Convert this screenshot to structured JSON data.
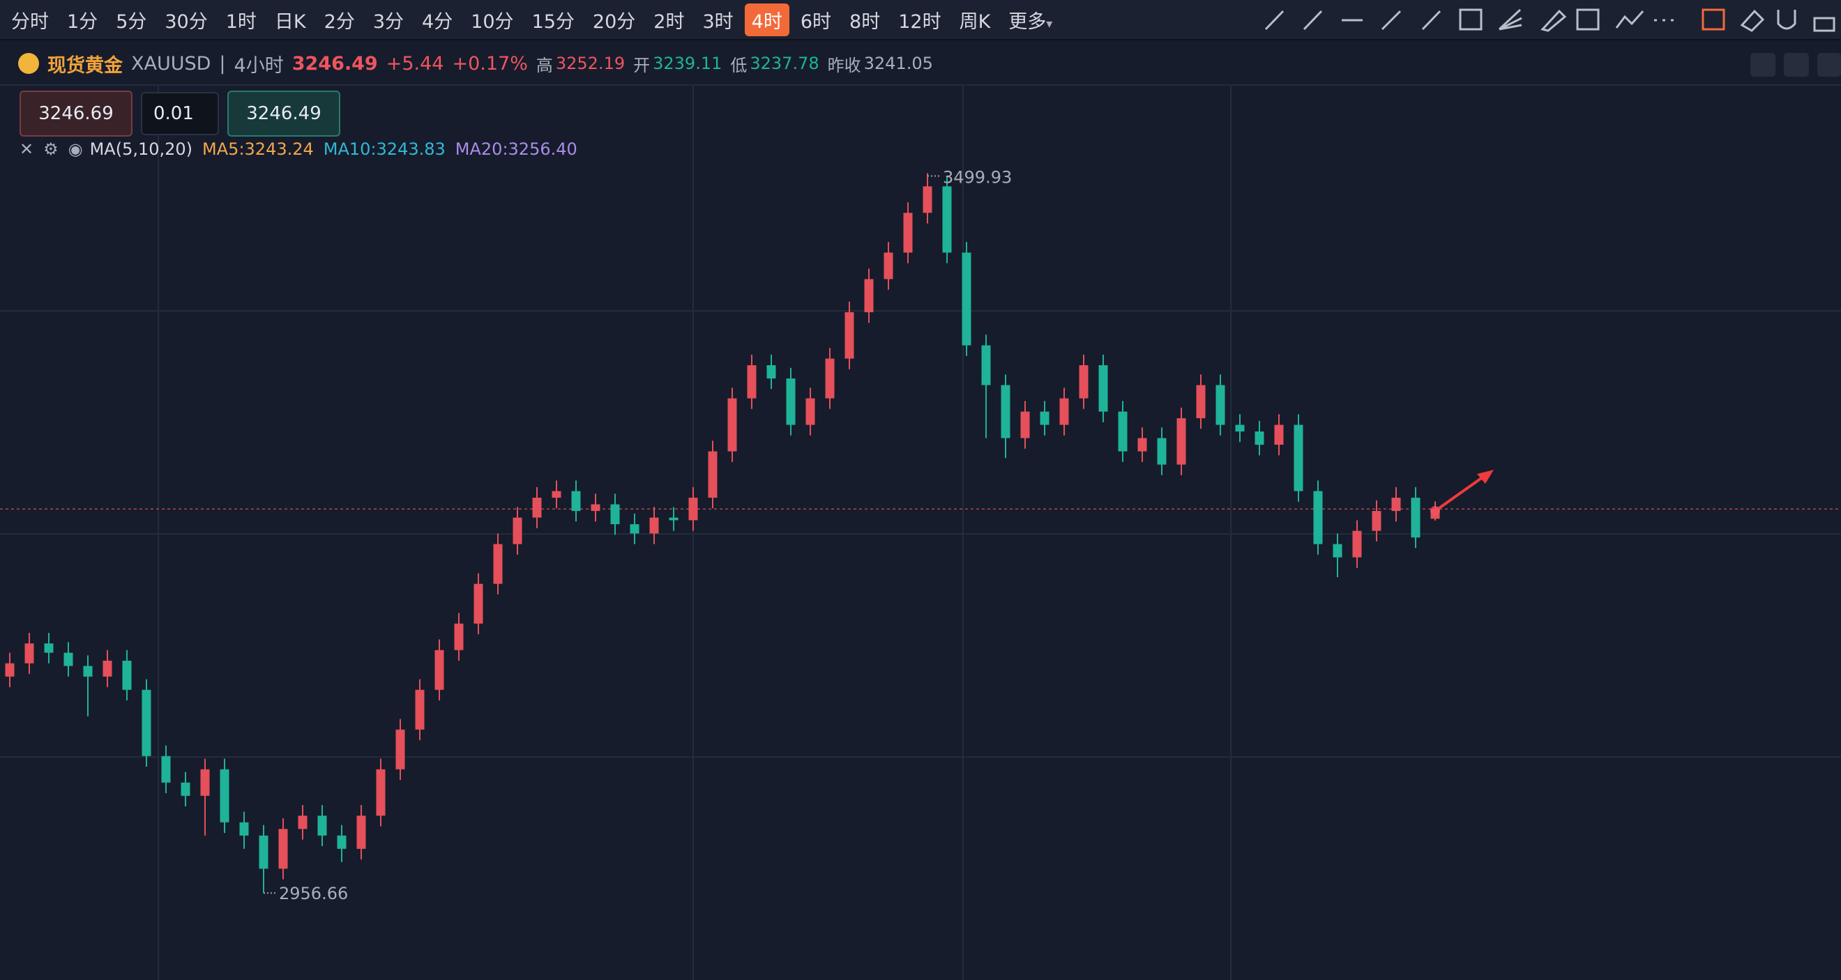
{
  "toolbar": {
    "timeframes": [
      "分时",
      "1分",
      "5分",
      "30分",
      "1时",
      "日K",
      "2分",
      "3分",
      "4分",
      "10分",
      "15分",
      "20分",
      "2时",
      "3时",
      "4时",
      "6时",
      "8时",
      "12时",
      "周K",
      "更多"
    ],
    "active": "4时"
  },
  "symbol": {
    "name": "现货黄金",
    "code": "XAUUSD",
    "period": "4小时",
    "price": "3246.49",
    "change": "+5.44",
    "change_pct": "+0.17%",
    "high_label": "高",
    "high": "3252.19",
    "open_label": "开",
    "open": "3239.11",
    "low_label": "低",
    "low": "3237.78",
    "prev_label": "昨收",
    "prev": "3241.05"
  },
  "order": {
    "sell": "3246.69",
    "qty": "0.01",
    "buy": "3246.49"
  },
  "indicator": {
    "name": "MA(5,10,20)",
    "ma5": "MA5:3243.24",
    "ma10": "MA10:3243.83",
    "ma20": "MA20:3256.40"
  },
  "chart_data": {
    "type": "candlestick",
    "up_color": "#e5505a",
    "down_color": "#1fb39a",
    "ylim": [
      2891,
      3567
    ],
    "open": [
      3120,
      3130,
      3145,
      3138,
      3128,
      3120,
      3132,
      3110,
      3060,
      3040,
      3030,
      3050,
      3010,
      3000,
      2975,
      3005,
      3015,
      3000,
      2990,
      3015,
      3050,
      3080,
      3110,
      3140,
      3160,
      3190,
      3220,
      3240,
      3255,
      3260,
      3245,
      3250,
      3235,
      3228,
      3240,
      3238,
      3255,
      3290,
      3330,
      3355,
      3345,
      3310,
      3330,
      3360,
      3395,
      3420,
      3440,
      3470,
      3490,
      3440,
      3370,
      3340,
      3300,
      3320,
      3310,
      3330,
      3355,
      3320,
      3290,
      3300,
      3280,
      3315,
      3340,
      3310,
      3305,
      3295,
      3310,
      3260,
      3220,
      3210,
      3230,
      3245,
      3255,
      3239.11
    ],
    "high": [
      3138,
      3153,
      3153,
      3146,
      3136,
      3140,
      3140,
      3118,
      3068,
      3048,
      3058,
      3058,
      3018,
      3008,
      3013,
      3023,
      3023,
      3008,
      3023,
      3058,
      3088,
      3118,
      3148,
      3168,
      3198,
      3228,
      3248,
      3263,
      3268,
      3268,
      3258,
      3258,
      3243,
      3248,
      3248,
      3263,
      3298,
      3338,
      3363,
      3363,
      3353,
      3338,
      3368,
      3403,
      3428,
      3448,
      3478,
      3499.93,
      3498,
      3448,
      3378,
      3348,
      3328,
      3328,
      3338,
      3363,
      3363,
      3328,
      3308,
      3308,
      3323,
      3348,
      3348,
      3318,
      3313,
      3318,
      3318,
      3268,
      3228,
      3238,
      3253,
      3263,
      3263,
      3252.19
    ],
    "low": [
      3112,
      3122,
      3130,
      3120,
      3090,
      3112,
      3102,
      3052,
      3032,
      3022,
      3000,
      3002,
      2990,
      2956.66,
      2967,
      2997,
      2992,
      2980,
      2982,
      3007,
      3042,
      3072,
      3102,
      3132,
      3152,
      3182,
      3212,
      3232,
      3247,
      3237,
      3237,
      3227,
      3220,
      3220,
      3230,
      3230,
      3247,
      3282,
      3322,
      3337,
      3302,
      3302,
      3322,
      3352,
      3387,
      3412,
      3432,
      3462,
      3432,
      3362,
      3300,
      3285,
      3292,
      3302,
      3302,
      3322,
      3312,
      3282,
      3282,
      3272,
      3272,
      3307,
      3302,
      3297,
      3287,
      3287,
      3252,
      3212,
      3195,
      3202,
      3222,
      3237,
      3217,
      3237.78
    ],
    "close": [
      3130,
      3145,
      3138,
      3128,
      3120,
      3132,
      3110,
      3060,
      3040,
      3030,
      3050,
      3010,
      3000,
      2975,
      3005,
      3015,
      3000,
      2990,
      3015,
      3050,
      3080,
      3110,
      3140,
      3160,
      3190,
      3220,
      3240,
      3255,
      3260,
      3245,
      3250,
      3235,
      3228,
      3240,
      3238,
      3255,
      3290,
      3330,
      3355,
      3345,
      3310,
      3330,
      3360,
      3395,
      3420,
      3440,
      3470,
      3490,
      3440,
      3370,
      3340,
      3300,
      3320,
      3310,
      3330,
      3355,
      3320,
      3290,
      3300,
      3280,
      3315,
      3340,
      3310,
      3305,
      3295,
      3310,
      3260,
      3220,
      3210,
      3230,
      3245,
      3255,
      3225,
      3246.49
    ]
  }
}
